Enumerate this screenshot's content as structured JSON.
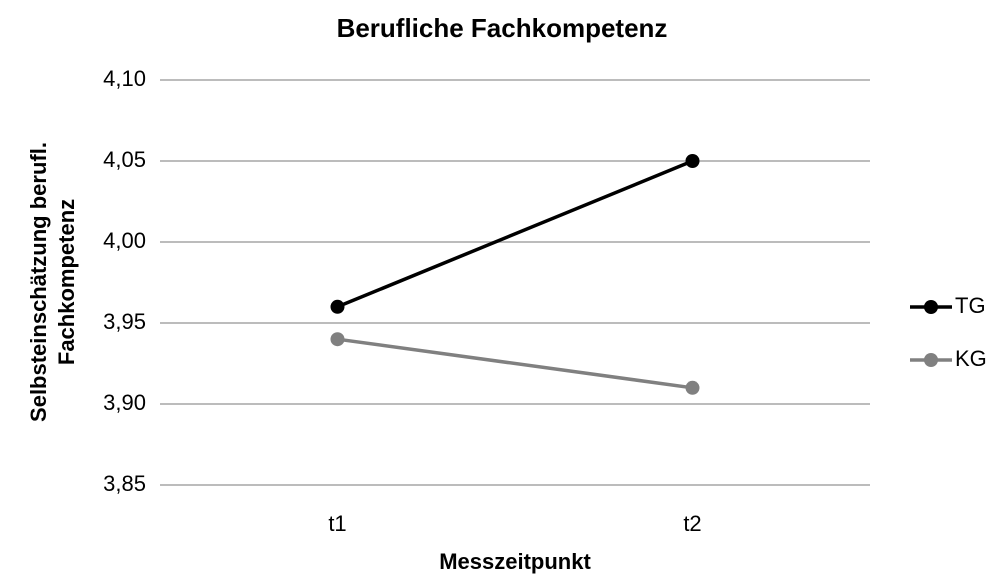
{
  "chart_data": {
    "type": "line",
    "title": "Berufliche Fachkompetenz",
    "xlabel": "Messzeitpunkt",
    "ylabel": [
      "Selbsteinschätzung berufl.",
      "Fachkompetenz"
    ],
    "categories": [
      "t1",
      "t2"
    ],
    "series": [
      {
        "name": "TG",
        "color": "#000000",
        "values": [
          3.96,
          4.05
        ]
      },
      {
        "name": "KG",
        "color": "#808080",
        "values": [
          3.94,
          3.91
        ]
      }
    ],
    "ylim": [
      3.85,
      4.1
    ],
    "yticks": [
      {
        "value": 3.85,
        "label": "3,85"
      },
      {
        "value": 3.9,
        "label": "3,90"
      },
      {
        "value": 3.95,
        "label": "3,95"
      },
      {
        "value": 4.0,
        "label": "4,00"
      },
      {
        "value": 4.05,
        "label": "4,05"
      },
      {
        "value": 4.1,
        "label": "4,10"
      }
    ],
    "grid": true,
    "legend": "right"
  }
}
